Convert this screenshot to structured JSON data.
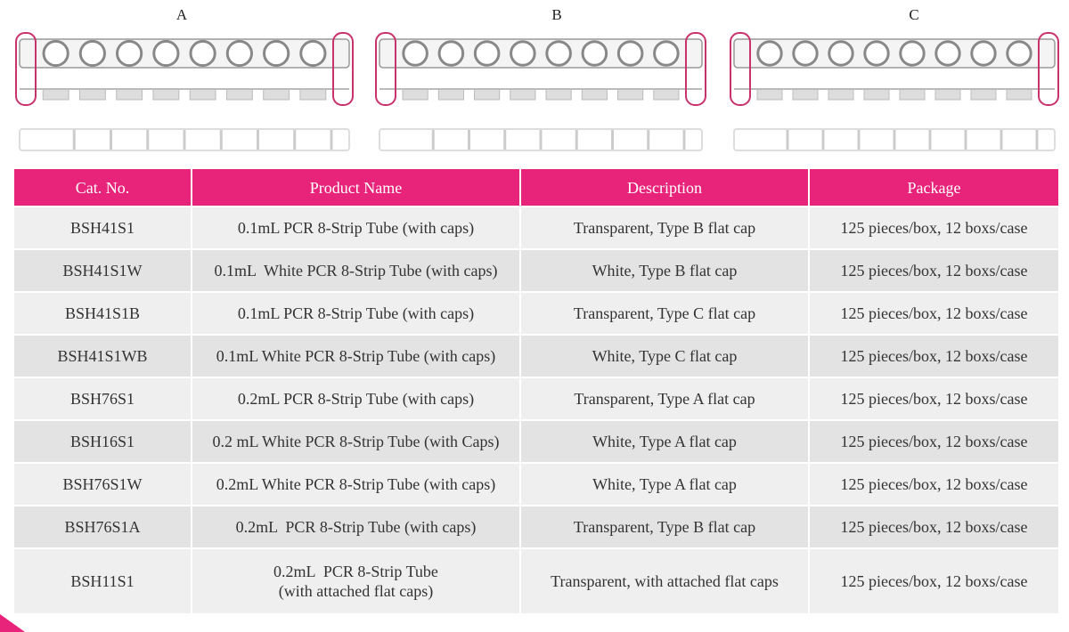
{
  "labels": [
    "A",
    "B",
    "C"
  ],
  "table": {
    "header": [
      "Cat. No.",
      "Product Name",
      "Description",
      "Package"
    ],
    "rows": [
      [
        "BSH41S1",
        "0.1mL PCR 8-Strip Tube (with caps)",
        "Transparent, Type B flat cap",
        "125 pieces/box, 12 boxs/case"
      ],
      [
        "BSH41S1W",
        "0.1mL  White PCR 8-Strip Tube (with caps)",
        "White, Type B flat cap",
        "125 pieces/box, 12 boxs/case"
      ],
      [
        "BSH41S1B",
        "0.1mL PCR 8-Strip Tube (with caps)",
        "Transparent, Type C flat cap",
        "125 pieces/box, 12 boxs/case"
      ],
      [
        "BSH41S1WB",
        "0.1mL White PCR 8-Strip Tube (with caps)",
        "White, Type C flat cap",
        "125 pieces/box, 12 boxs/case"
      ],
      [
        "BSH76S1",
        "0.2mL PCR 8-Strip Tube (with caps)",
        "Transparent, Type A flat cap",
        "125 pieces/box, 12 boxs/case"
      ],
      [
        "BSH16S1",
        "0.2 mL White PCR 8-Strip Tube (with Caps)",
        "White, Type A flat cap",
        "125 pieces/box, 12 boxs/case"
      ],
      [
        "BSH76S1W",
        "0.2mL White PCR 8-Strip Tube (with caps)",
        "White, Type A flat cap",
        "125 pieces/box, 12 boxs/case"
      ],
      [
        "BSH76S1A",
        "0.2mL  PCR 8-Strip Tube (with caps)",
        "Transparent, Type B flat cap",
        "125 pieces/box, 12 boxs/case"
      ],
      [
        "BSH11S1",
        [
          "0.2mL  PCR 8-Strip Tube",
          "(with attached flat caps)"
        ],
        "Transparent, with attached flat caps",
        "125 pieces/box, 12 boxs/case"
      ]
    ]
  }
}
